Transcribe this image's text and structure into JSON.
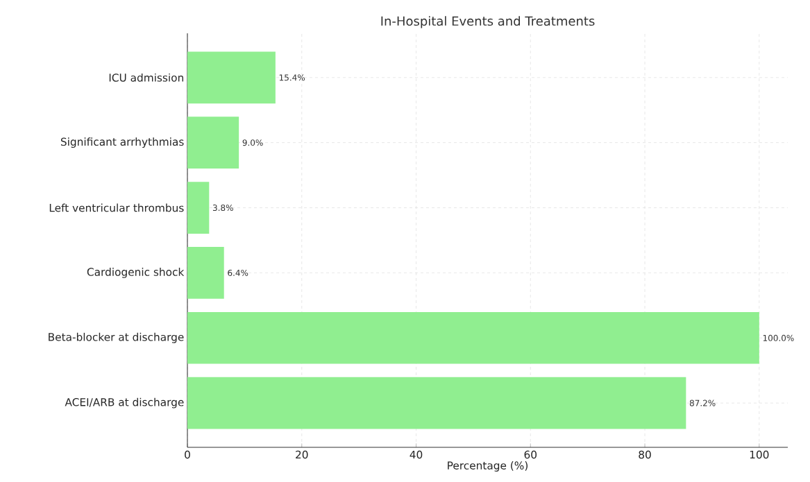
{
  "chart_data": {
    "type": "bar",
    "orientation": "horizontal",
    "title": "In-Hospital Events and Treatments",
    "xlabel": "Percentage (%)",
    "categories": [
      "ICU admission",
      "Significant arrhythmias",
      "Left ventricular thrombus",
      "Cardiogenic shock",
      "Beta-blocker at discharge",
      "ACEI/ARB at discharge"
    ],
    "values": [
      15.4,
      9.0,
      3.8,
      6.4,
      100.0,
      87.2
    ],
    "value_labels": [
      "15.4%",
      "9.0%",
      "3.8%",
      "6.4%",
      "100.0%",
      "87.2%"
    ],
    "color": "#90ee90",
    "xlim": [
      0,
      105
    ],
    "xticks": [
      0,
      20,
      40,
      60,
      80,
      100
    ],
    "grid": true
  }
}
